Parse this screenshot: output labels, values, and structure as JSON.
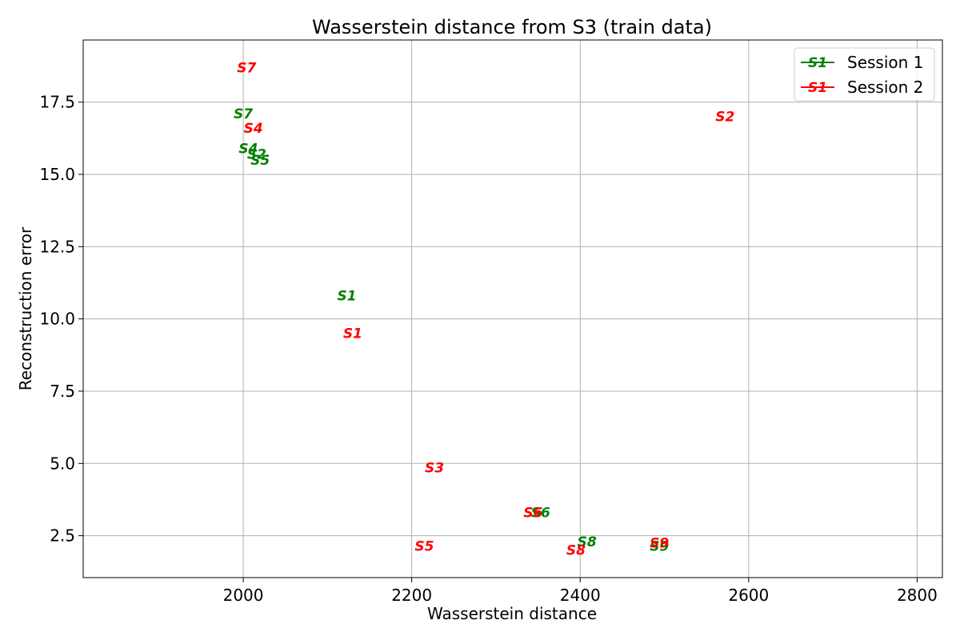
{
  "chart_data": {
    "type": "scatter",
    "title": "Wasserstein distance from S3 (train data)",
    "xlabel": "Wasserstein distance",
    "ylabel": "Reconstruction error",
    "xlim": [
      1810,
      2830
    ],
    "ylim": [
      1.05,
      19.65
    ],
    "xticks": [
      2000,
      2200,
      2400,
      2600,
      2800
    ],
    "yticks": [
      2.5,
      5.0,
      7.5,
      10.0,
      12.5,
      15.0,
      17.5
    ],
    "xtick_labels": [
      "2000",
      "2200",
      "2400",
      "2600",
      "2800"
    ],
    "ytick_labels": [
      "2.5",
      "5.0",
      "7.5",
      "10.0",
      "12.5",
      "15.0",
      "17.5"
    ],
    "grid": true,
    "legend_position": "top-right",
    "legend_marker_label": "S1",
    "series": [
      {
        "name": "Session 1",
        "color": "#008000",
        "points": [
          {
            "label": "S1",
            "x": 2123,
            "y": 10.8
          },
          {
            "label": "S2",
            "x": 2016,
            "y": 15.7
          },
          {
            "label": "S4",
            "x": 2006,
            "y": 15.9
          },
          {
            "label": "S5",
            "x": 2020,
            "y": 15.5
          },
          {
            "label": "S6",
            "x": 2353,
            "y": 3.3
          },
          {
            "label": "S7",
            "x": 2000,
            "y": 17.1
          },
          {
            "label": "S8",
            "x": 2408,
            "y": 2.3
          },
          {
            "label": "S9",
            "x": 2494,
            "y": 2.15
          }
        ]
      },
      {
        "name": "Session 2",
        "color": "#ff0000",
        "points": [
          {
            "label": "S1",
            "x": 2130,
            "y": 9.5
          },
          {
            "label": "S2",
            "x": 2572,
            "y": 17.0
          },
          {
            "label": "S3",
            "x": 2227,
            "y": 4.85
          },
          {
            "label": "S4",
            "x": 2012,
            "y": 16.6
          },
          {
            "label": "S5",
            "x": 2215,
            "y": 2.15
          },
          {
            "label": "S6",
            "x": 2344,
            "y": 3.3
          },
          {
            "label": "S7",
            "x": 2004,
            "y": 18.7
          },
          {
            "label": "S8",
            "x": 2395,
            "y": 2.0
          },
          {
            "label": "S9",
            "x": 2494,
            "y": 2.25
          }
        ]
      }
    ]
  }
}
